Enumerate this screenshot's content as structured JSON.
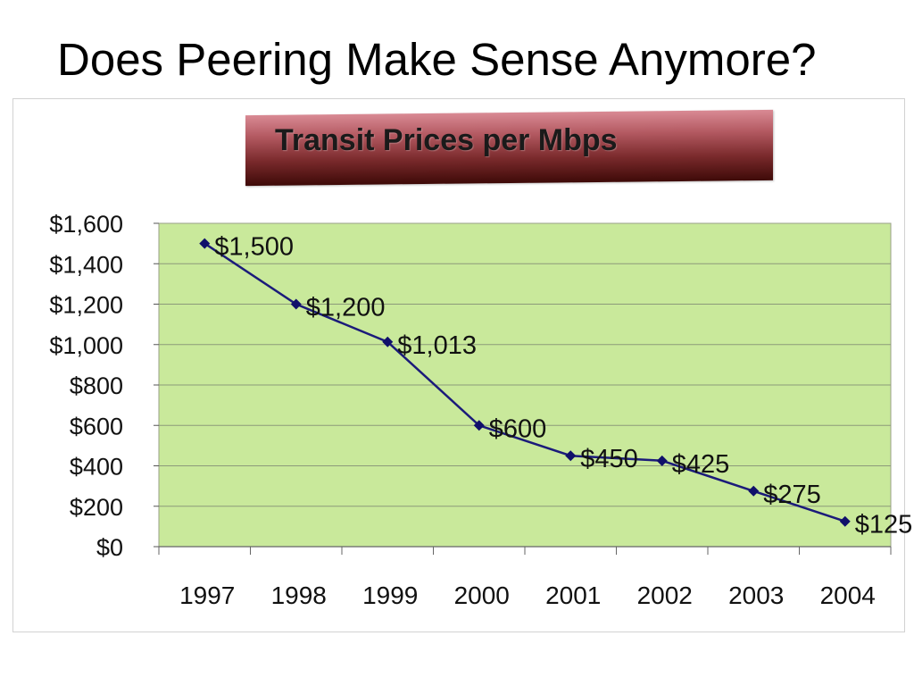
{
  "page": {
    "title": "Does Peering Make Sense Anymore?"
  },
  "colors": {
    "plot_background": "#c9e99b",
    "line": "#1b1b7a",
    "marker": "#10106a",
    "title_box_top": "#d98a94",
    "title_box_bottom": "#3e0a08"
  },
  "chart_data": {
    "type": "line",
    "title": "Transit Prices per Mbps",
    "categories": [
      "1997",
      "1998",
      "1999",
      "2000",
      "2001",
      "2002",
      "2003",
      "2004"
    ],
    "series": [
      {
        "values": [
          1500,
          1200,
          1013,
          600,
          450,
          425,
          275,
          125
        ],
        "data_labels": [
          "$1,500",
          "$1,200",
          "$1,013",
          "$600",
          "$450",
          "$425",
          "$275",
          "$125"
        ]
      }
    ],
    "ylim": [
      0,
      1600
    ],
    "yticks": [
      0,
      200,
      400,
      600,
      800,
      1000,
      1200,
      1400,
      1600
    ],
    "ytick_labels": [
      "$0",
      "$200",
      "$400",
      "$600",
      "$800",
      "$1,000",
      "$1,200",
      "$1,400",
      "$1,600"
    ],
    "xlabel": "",
    "ylabel": "",
    "grid": "horizontal",
    "legend": "none",
    "marker": "diamond"
  }
}
